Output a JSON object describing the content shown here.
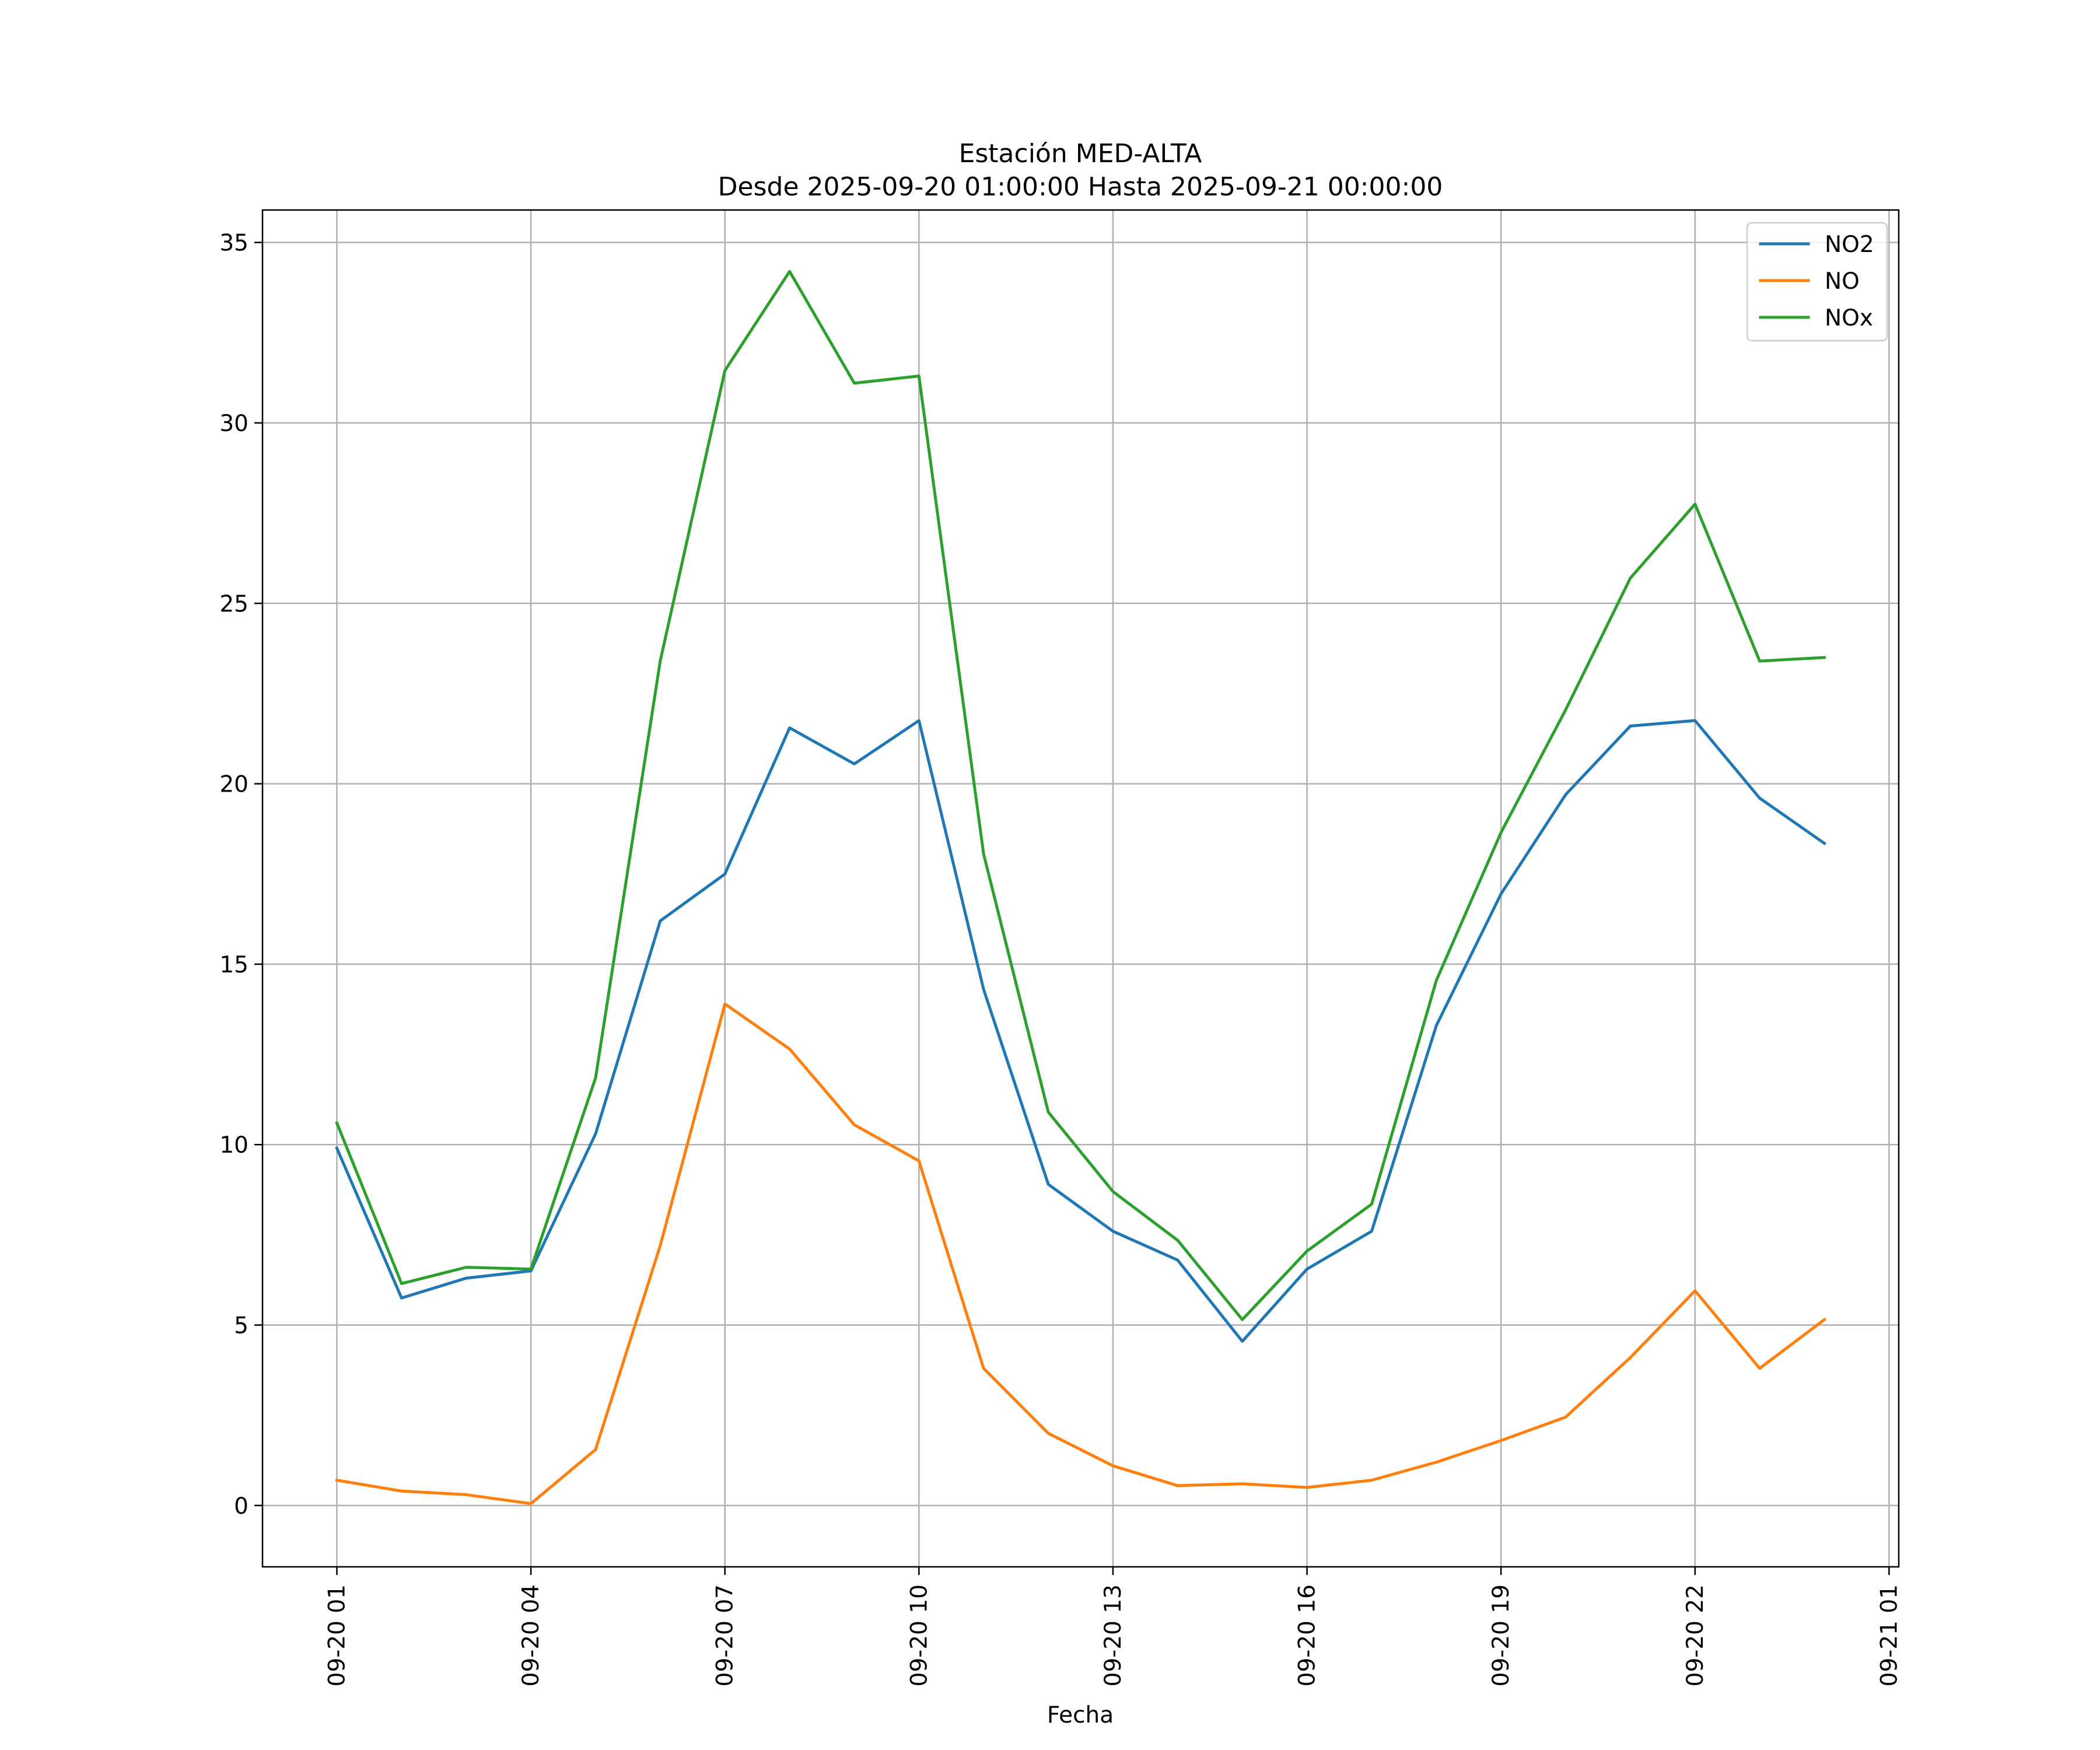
{
  "chart_data": {
    "type": "line",
    "title": "Estación MED-ALTA",
    "subtitle": "Desde 2025-09-20 01:00:00 Hasta 2025-09-21 00:00:00",
    "xlabel": "Fecha",
    "ylabel": "",
    "x": [
      "2025-09-20 01:00",
      "2025-09-20 02:00",
      "2025-09-20 03:00",
      "2025-09-20 04:00",
      "2025-09-20 05:00",
      "2025-09-20 06:00",
      "2025-09-20 07:00",
      "2025-09-20 08:00",
      "2025-09-20 09:00",
      "2025-09-20 10:00",
      "2025-09-20 11:00",
      "2025-09-20 12:00",
      "2025-09-20 13:00",
      "2025-09-20 14:00",
      "2025-09-20 15:00",
      "2025-09-20 16:00",
      "2025-09-20 17:00",
      "2025-09-20 18:00",
      "2025-09-20 19:00",
      "2025-09-20 20:00",
      "2025-09-20 21:00",
      "2025-09-20 22:00",
      "2025-09-20 23:00",
      "2025-09-21 00:00"
    ],
    "xlim": [
      "2025-09-19 23:51",
      "2025-09-21 01:09"
    ],
    "xticks": [
      {
        "x": "2025-09-20 01:00",
        "label": "09-20 01"
      },
      {
        "x": "2025-09-20 04:00",
        "label": "09-20 04"
      },
      {
        "x": "2025-09-20 07:00",
        "label": "09-20 07"
      },
      {
        "x": "2025-09-20 10:00",
        "label": "09-20 10"
      },
      {
        "x": "2025-09-20 13:00",
        "label": "09-20 13"
      },
      {
        "x": "2025-09-20 16:00",
        "label": "09-20 16"
      },
      {
        "x": "2025-09-20 19:00",
        "label": "09-20 19"
      },
      {
        "x": "2025-09-20 22:00",
        "label": "09-20 22"
      },
      {
        "x": "2025-09-21 01:00",
        "label": "09-21 01"
      }
    ],
    "ylim": [
      -1.7,
      35.9
    ],
    "yticks": [
      0,
      5,
      10,
      15,
      20,
      25,
      30,
      35
    ],
    "grid": true,
    "legend_position": "upper right",
    "series": [
      {
        "name": "NO2",
        "color": "#1f77b4",
        "values": [
          9.9,
          5.75,
          6.3,
          6.5,
          10.3,
          16.2,
          17.5,
          21.55,
          20.55,
          21.75,
          14.3,
          8.9,
          7.6,
          6.8,
          4.55,
          6.55,
          7.6,
          13.3,
          16.95,
          19.7,
          21.6,
          21.75,
          19.6,
          18.35
        ]
      },
      {
        "name": "NO",
        "color": "#ff7f0e",
        "values": [
          0.7,
          0.4,
          0.3,
          0.05,
          1.55,
          7.2,
          13.9,
          12.65,
          10.55,
          9.55,
          3.8,
          2.0,
          1.1,
          0.55,
          0.6,
          0.5,
          0.7,
          1.2,
          1.8,
          2.45,
          4.1,
          5.95,
          3.8,
          5.15
        ]
      },
      {
        "name": "NOx",
        "color": "#2ca02c",
        "values": [
          10.6,
          6.15,
          6.6,
          6.55,
          11.85,
          23.4,
          31.45,
          34.2,
          31.1,
          31.3,
          18.05,
          10.9,
          8.7,
          7.35,
          5.15,
          7.05,
          8.35,
          14.55,
          18.65,
          22.05,
          25.7,
          27.75,
          23.4,
          23.5
        ]
      }
    ]
  }
}
